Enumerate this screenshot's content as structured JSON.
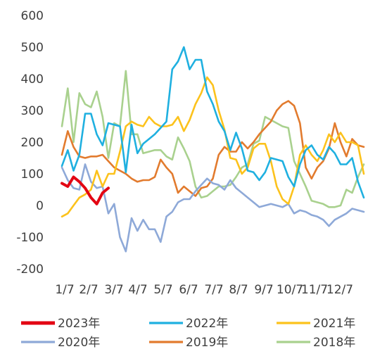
{
  "chart_data": {
    "type": "line",
    "title": "",
    "xlabel": "",
    "ylabel": "",
    "ylim": [
      -200,
      600
    ],
    "yticks": [
      -200,
      -100,
      0,
      100,
      200,
      300,
      400,
      500,
      600
    ],
    "x_tick_labels": [
      "1/7",
      "2/7",
      "3/7",
      "4/7",
      "5/7",
      "6/7",
      "7/7",
      "8/7",
      "9/7",
      "10/7",
      "11/7",
      "12/7"
    ],
    "x_range": [
      1,
      53
    ],
    "grid": false,
    "legend_position": "bottom",
    "series": [
      {
        "name": "2023年",
        "color": "#e30613",
        "x": [
          1,
          2,
          3,
          4,
          5,
          6,
          7,
          8,
          9
        ],
        "y": [
          70,
          60,
          90,
          75,
          55,
          25,
          5,
          40,
          55
        ]
      },
      {
        "name": "2022年",
        "color": "#1fb0e0",
        "x": [
          1,
          2,
          3,
          4,
          5,
          6,
          7,
          8,
          9,
          10,
          11,
          12,
          13,
          14,
          15,
          16,
          17,
          18,
          19,
          20,
          21,
          22,
          23,
          24,
          25,
          26,
          27,
          28,
          29,
          30,
          31,
          32,
          33,
          34,
          35,
          36,
          37,
          38,
          39,
          40,
          41,
          42,
          43,
          44,
          45,
          46,
          47,
          48,
          49,
          50,
          51,
          52,
          53
        ],
        "y": [
          125,
          175,
          110,
          160,
          290,
          290,
          225,
          190,
          260,
          255,
          250,
          105,
          255,
          165,
          195,
          210,
          225,
          245,
          265,
          430,
          455,
          500,
          430,
          460,
          460,
          360,
          320,
          265,
          235,
          175,
          230,
          180,
          110,
          105,
          80,
          105,
          150,
          145,
          140,
          90,
          60,
          130,
          175,
          190,
          160,
          145,
          185,
          165,
          130,
          130,
          150,
          75,
          25
        ]
      },
      {
        "name": "2021年",
        "color": "#fcc21c",
        "x": [
          1,
          2,
          3,
          4,
          5,
          6,
          7,
          8,
          9,
          10,
          11,
          12,
          13,
          14,
          15,
          16,
          17,
          18,
          19,
          20,
          21,
          22,
          23,
          24,
          25,
          26,
          27,
          28,
          29,
          30,
          31,
          32,
          33,
          34,
          35,
          36,
          37,
          38,
          39,
          40,
          41,
          42,
          43,
          44,
          45,
          46,
          47,
          48,
          49,
          50,
          51,
          52,
          53
        ],
        "y": [
          -35,
          -25,
          0,
          25,
          35,
          50,
          110,
          60,
          100,
          100,
          170,
          250,
          265,
          255,
          250,
          280,
          260,
          250,
          250,
          255,
          280,
          235,
          270,
          320,
          355,
          405,
          380,
          300,
          240,
          150,
          145,
          100,
          120,
          180,
          195,
          195,
          140,
          60,
          20,
          5,
          60,
          160,
          190,
          160,
          140,
          175,
          225,
          200,
          230,
          200,
          200,
          190,
          100
        ]
      },
      {
        "name": "2020年",
        "color": "#8ea9d8",
        "x": [
          1,
          2,
          3,
          4,
          5,
          6,
          7,
          8,
          9,
          10,
          11,
          12,
          13,
          14,
          15,
          16,
          17,
          18,
          19,
          20,
          21,
          22,
          23,
          24,
          25,
          26,
          27,
          28,
          29,
          30,
          31,
          32,
          33,
          34,
          35,
          36,
          37,
          38,
          39,
          40,
          41,
          42,
          43,
          44,
          45,
          46,
          47,
          48,
          49,
          50,
          51,
          52,
          53
        ],
        "y": [
          120,
          80,
          55,
          50,
          130,
          75,
          55,
          60,
          -25,
          5,
          -100,
          -145,
          -40,
          -80,
          -45,
          -75,
          -75,
          -115,
          -35,
          -20,
          10,
          20,
          20,
          45,
          65,
          85,
          70,
          65,
          50,
          80,
          55,
          40,
          25,
          10,
          -5,
          0,
          5,
          0,
          -5,
          5,
          -25,
          -15,
          -20,
          -30,
          -35,
          -45,
          -65,
          -45,
          -35,
          -25,
          -10,
          -15,
          -20
        ]
      },
      {
        "name": "2019年",
        "color": "#e27b2e",
        "x": [
          1,
          2,
          3,
          4,
          5,
          6,
          7,
          8,
          9,
          10,
          11,
          12,
          13,
          14,
          15,
          16,
          17,
          18,
          19,
          20,
          21,
          22,
          23,
          24,
          25,
          26,
          27,
          28,
          29,
          30,
          31,
          32,
          33,
          34,
          35,
          36,
          37,
          38,
          39,
          40,
          41,
          42,
          43,
          44,
          45,
          46,
          47,
          48,
          49,
          50,
          51,
          52,
          53
        ],
        "y": [
          160,
          235,
          185,
          155,
          150,
          155,
          155,
          160,
          140,
          120,
          110,
          100,
          85,
          75,
          80,
          80,
          90,
          145,
          120,
          100,
          40,
          60,
          45,
          30,
          55,
          60,
          85,
          160,
          185,
          170,
          170,
          200,
          180,
          200,
          225,
          245,
          265,
          300,
          320,
          330,
          315,
          260,
          120,
          85,
          120,
          140,
          180,
          260,
          200,
          155,
          210,
          190,
          185
        ]
      },
      {
        "name": "2018年",
        "color": "#a9d18e",
        "x": [
          1,
          2,
          3,
          4,
          5,
          6,
          7,
          8,
          9,
          10,
          11,
          12,
          13,
          14,
          15,
          16,
          17,
          18,
          19,
          20,
          21,
          22,
          23,
          24,
          25,
          26,
          27,
          28,
          29,
          30,
          31,
          32,
          33,
          34,
          35,
          36,
          37,
          38,
          39,
          40,
          41,
          42,
          43,
          44,
          45,
          46,
          47,
          48,
          49,
          50,
          51,
          52,
          53
        ],
        "y": [
          250,
          370,
          200,
          355,
          320,
          310,
          360,
          280,
          150,
          260,
          250,
          425,
          225,
          225,
          165,
          170,
          175,
          175,
          155,
          145,
          215,
          180,
          140,
          60,
          25,
          30,
          45,
          60,
          60,
          65,
          90,
          120,
          130,
          195,
          205,
          280,
          270,
          260,
          250,
          245,
          140,
          100,
          60,
          15,
          10,
          5,
          -5,
          -5,
          0,
          50,
          40,
          90,
          130
        ]
      }
    ]
  }
}
